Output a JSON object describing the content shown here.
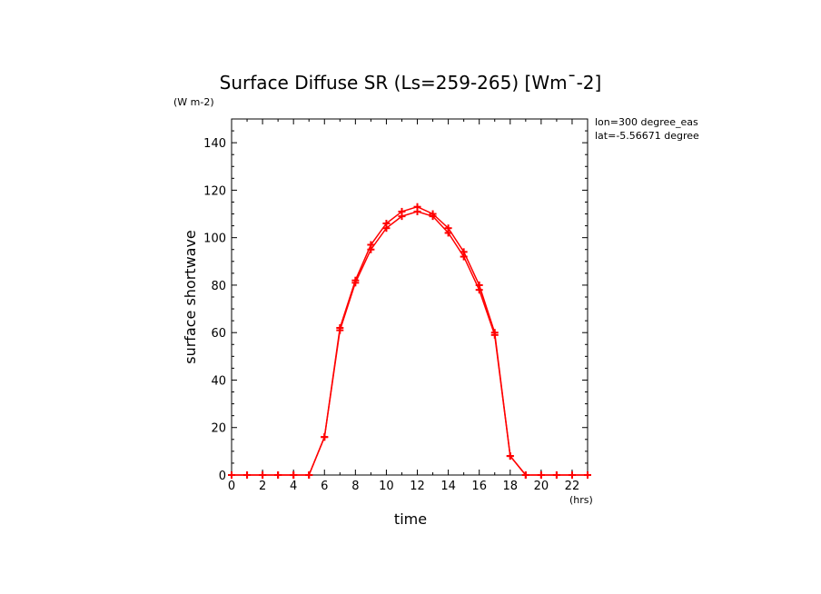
{
  "chart_data": {
    "type": "line",
    "title": "Surface Diffuse SR (Ls=259-265) [Wm¯-2]",
    "xlabel": "time",
    "x_unit": "(hrs)",
    "ylabel": "surface shortwave",
    "y_unit": "(W m-2)",
    "xlim": [
      0,
      23
    ],
    "ylim": [
      0,
      150
    ],
    "x_ticks": [
      0,
      2,
      4,
      6,
      8,
      10,
      12,
      14,
      16,
      18,
      20,
      22
    ],
    "y_ticks": [
      0,
      20,
      40,
      60,
      80,
      100,
      120,
      140
    ],
    "grid": false,
    "annotations": [
      "lon=300 degree_eas",
      "lat=-5.56671 degree"
    ],
    "line_color": "#ff0000",
    "series": [
      {
        "x": [
          0,
          1,
          2,
          3,
          4,
          5,
          6,
          7,
          8,
          9,
          10,
          11,
          12,
          13,
          14,
          15,
          16,
          17,
          18,
          19,
          20,
          21,
          22,
          23
        ],
        "y": [
          0,
          0,
          0,
          0,
          0,
          0,
          16,
          61,
          81,
          95,
          104,
          109,
          111,
          109,
          102,
          92,
          78,
          59,
          8,
          0,
          0,
          0,
          0,
          0
        ]
      },
      {
        "x": [
          0,
          1,
          2,
          3,
          4,
          5,
          6,
          7,
          8,
          9,
          10,
          11,
          12,
          13,
          14,
          15,
          16,
          17,
          18,
          19,
          20,
          21,
          22,
          23
        ],
        "y": [
          0,
          0,
          0,
          0,
          0,
          0,
          16,
          62,
          82,
          97,
          106,
          111,
          113,
          110,
          104,
          94,
          80,
          60,
          8,
          0,
          0,
          0,
          0,
          0
        ]
      }
    ]
  }
}
